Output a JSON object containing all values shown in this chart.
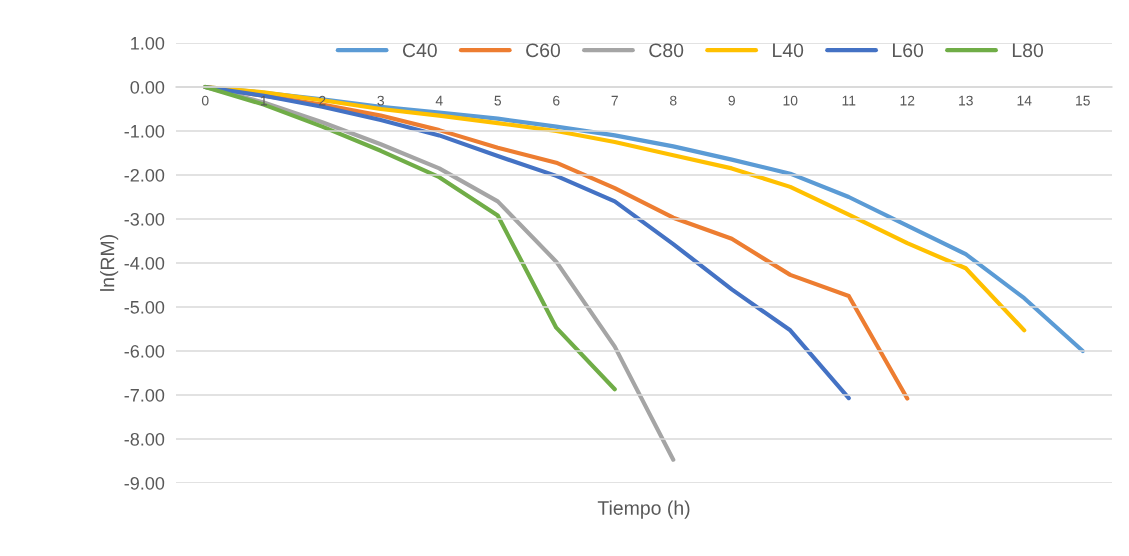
{
  "chart_data": {
    "type": "line",
    "xlabel": "Tiempo (h)",
    "ylabel": "ln(RM)",
    "categories": [
      "0",
      "1",
      "2",
      "3",
      "4",
      "5",
      "6",
      "7",
      "8",
      "9",
      "10",
      "11",
      "12",
      "13",
      "14",
      "15"
    ],
    "series": [
      {
        "name": "C40",
        "color": "#5b9bd5",
        "values": [
          0,
          -0.13,
          -0.28,
          -0.45,
          -0.58,
          -0.72,
          -0.9,
          -1.1,
          -1.35,
          -1.65,
          -1.97,
          -2.5,
          -3.15,
          -3.8,
          -4.8,
          -6.0
        ]
      },
      {
        "name": "C60",
        "color": "#ed7d31",
        "values": [
          0,
          -0.2,
          -0.4,
          -0.65,
          -0.98,
          -1.38,
          -1.72,
          -2.3,
          -2.97,
          -3.45,
          -4.27,
          -4.75,
          -7.08,
          null,
          null,
          null
        ]
      },
      {
        "name": "C80",
        "color": "#a5a5a5",
        "values": [
          0,
          -0.35,
          -0.8,
          -1.3,
          -1.85,
          -2.6,
          -3.97,
          -5.9,
          -8.47,
          null,
          null,
          null,
          null,
          null,
          null,
          null
        ]
      },
      {
        "name": "L40",
        "color": "#ffc000",
        "values": [
          0,
          -0.12,
          -0.3,
          -0.5,
          -0.65,
          -0.82,
          -1.0,
          -1.25,
          -1.55,
          -1.85,
          -2.27,
          -2.9,
          -3.55,
          -4.12,
          -5.53,
          null
        ]
      },
      {
        "name": "L60",
        "color": "#4472c4",
        "values": [
          0,
          -0.2,
          -0.45,
          -0.75,
          -1.1,
          -1.57,
          -2.02,
          -2.6,
          -3.57,
          -4.6,
          -5.53,
          -7.07,
          null,
          null,
          null,
          null
        ]
      },
      {
        "name": "L80",
        "color": "#70ad47",
        "values": [
          0,
          -0.4,
          -0.9,
          -1.45,
          -2.05,
          -2.92,
          -5.47,
          -6.87,
          null,
          null,
          null,
          null,
          null,
          null,
          null,
          null
        ]
      }
    ],
    "ylim": [
      -9,
      1
    ],
    "yticks": [
      {
        "value": 1,
        "label": "1.00"
      },
      {
        "value": 0,
        "label": "0.00"
      },
      {
        "value": -1,
        "label": "-1.00"
      },
      {
        "value": -2,
        "label": "-2.00"
      },
      {
        "value": -3,
        "label": "-3.00"
      },
      {
        "value": -4,
        "label": "-4.00"
      },
      {
        "value": -5,
        "label": "-5.00"
      },
      {
        "value": -6,
        "label": "-6.00"
      },
      {
        "value": -7,
        "label": "-7.00"
      },
      {
        "value": -8,
        "label": "-8.00"
      },
      {
        "value": -9,
        "label": "-9.00"
      }
    ],
    "grid": "y",
    "legend": "top",
    "marker": "none",
    "line_style": "solid"
  }
}
